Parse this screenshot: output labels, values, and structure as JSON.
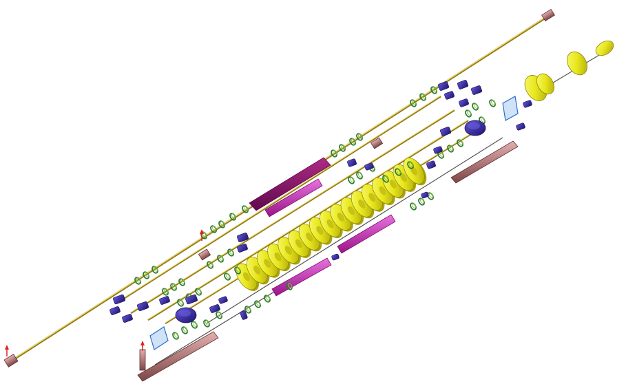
{
  "colors": {
    "background": "#ffffff",
    "beampipe": "#c9a92e",
    "beampipe_light": "#f2dc6a",
    "quad_ring": "#2e7d32",
    "quad_ring_light": "#8bc34a",
    "dipole_blue": "#2a1f8f",
    "dipole_blue_light": "#5140c8",
    "cavity_yellow": "#e7e61a",
    "cavity_yellow_dark": "#a9a20c",
    "solenoid_magenta": "#c51fb6",
    "solenoid_magenta_dark": "#7e0e6c",
    "gun_pink": "#c98a8a",
    "gun_pink_dark": "#7d4646",
    "beam_dump_blue": "#2a6fc9",
    "marker_red": "#e02020"
  },
  "components": [
    {
      "name": "beampipe-long-upper"
    },
    {
      "name": "beampipe-parallel-lines"
    },
    {
      "name": "quadrupole-rings"
    },
    {
      "name": "dipole-magnets"
    },
    {
      "name": "accelerating-cavities"
    },
    {
      "name": "solenoid-sections"
    },
    {
      "name": "electron-gun-injectors"
    },
    {
      "name": "beam-dumps"
    }
  ]
}
